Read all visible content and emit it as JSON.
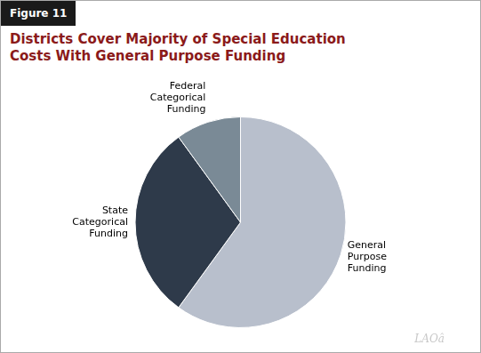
{
  "chart_data": {
    "type": "pie",
    "title": "Districts Cover Majority of Special Education\nCosts With General Purpose Funding",
    "categories": [
      "General\nPurpose\nFunding",
      "State\nCategorical\nFunding",
      "Federal\nCategorical\nFunding"
    ],
    "values": [
      60,
      30,
      10
    ],
    "colors": [
      "#b8bfcc",
      "#2e3a4a",
      "#7a8a96"
    ],
    "annotations": [
      "Figure 11",
      "LAOâ"
    ]
  }
}
